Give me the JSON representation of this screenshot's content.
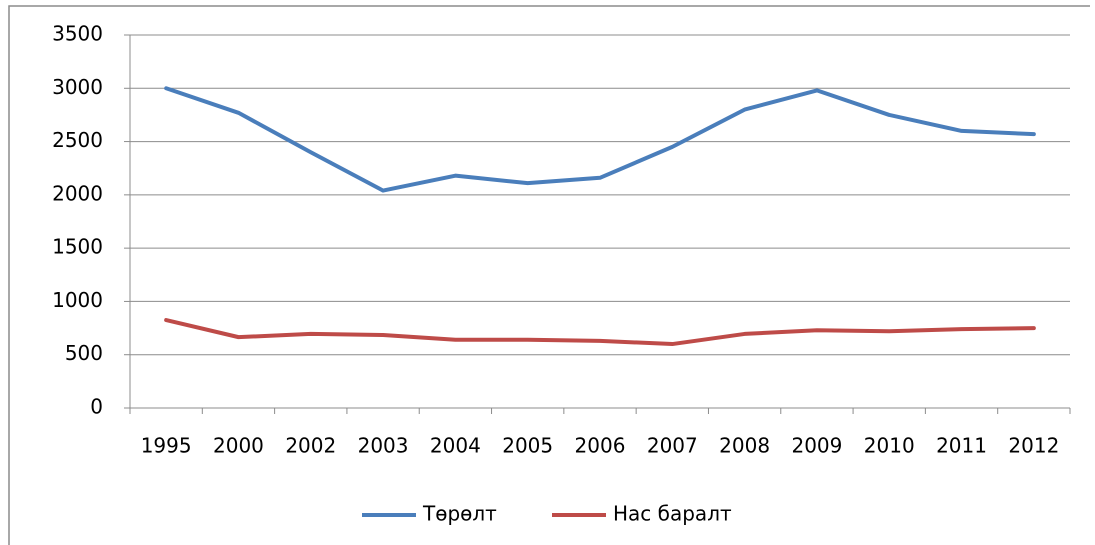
{
  "chart_data": {
    "type": "line",
    "categories": [
      "1995",
      "2000",
      "2002",
      "2003",
      "2004",
      "2005",
      "2006",
      "2007",
      "2008",
      "2009",
      "2010",
      "2011",
      "2012"
    ],
    "series": [
      {
        "name": "Төрөлт",
        "color": "#4a7ebb",
        "values": [
          3000,
          2770,
          2400,
          2040,
          2180,
          2110,
          2160,
          2450,
          2800,
          2980,
          2750,
          2600,
          2570
        ]
      },
      {
        "name": "Нас баралт",
        "color": "#be4b48",
        "values": [
          825,
          665,
          695,
          685,
          640,
          640,
          630,
          600,
          695,
          730,
          720,
          740,
          750
        ]
      }
    ],
    "ylim": [
      0,
      3500
    ],
    "yticks": [
      0,
      500,
      1000,
      1500,
      2000,
      2500,
      3000,
      3500
    ],
    "grid": true,
    "legend": "bottom"
  }
}
